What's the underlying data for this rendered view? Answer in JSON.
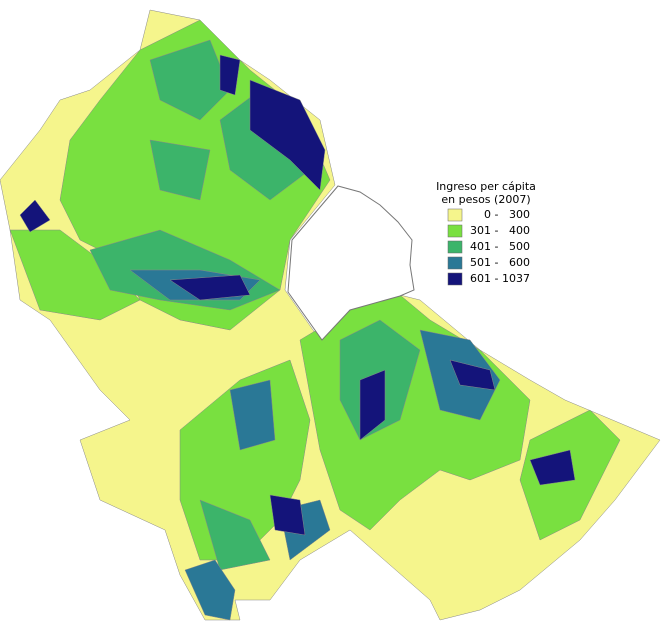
{
  "legend": {
    "title": [
      "Ingreso per cápita",
      "en pesos (2007)"
    ],
    "classes": [
      {
        "label": "0 -   300",
        "color": "#f5f58c"
      },
      {
        "label": "301 -   400",
        "color": "#79e040"
      },
      {
        "label": "401 -   500",
        "color": "#3cb46a"
      },
      {
        "label": "501 -   600",
        "color": "#2a7896"
      },
      {
        "label": "601 - 1037",
        "color": "#14147a"
      }
    ]
  }
}
